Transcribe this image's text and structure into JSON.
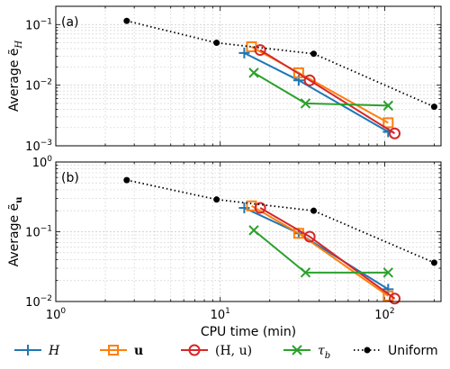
{
  "chart_data": [
    {
      "type": "line",
      "panel_label": "(a)",
      "ylabel": "Average ẽ",
      "ylabel_sub": "H",
      "xscale": "log",
      "yscale": "log",
      "xlim": [
        1,
        220
      ],
      "ylim": [
        0.001,
        0.2
      ],
      "yticks": [
        {
          "value": 0.001,
          "base": "10",
          "exp": "−3"
        },
        {
          "value": 0.01,
          "base": "10",
          "exp": "−2"
        },
        {
          "value": 0.1,
          "base": "10",
          "exp": "−1"
        }
      ],
      "grid": true,
      "series": [
        {
          "key": "H",
          "color": "#1f77b4",
          "marker": "plus",
          "style": "solid",
          "x": [
            14,
            30,
            105
          ],
          "y": [
            0.034,
            0.012,
            0.0017
          ]
        },
        {
          "key": "u",
          "color": "#ff7f0e",
          "marker": "square",
          "style": "solid",
          "x": [
            15.5,
            30,
            105
          ],
          "y": [
            0.043,
            0.016,
            0.0024
          ]
        },
        {
          "key": "Hu",
          "color": "#d62728",
          "marker": "circle",
          "style": "solid",
          "x": [
            17.5,
            35,
            115
          ],
          "y": [
            0.038,
            0.012,
            0.0016
          ]
        },
        {
          "key": "tau",
          "color": "#2ca02c",
          "marker": "x",
          "style": "solid",
          "x": [
            16,
            33,
            105
          ],
          "y": [
            0.016,
            0.005,
            0.0046
          ]
        },
        {
          "key": "uniform",
          "color": "#000000",
          "marker": "dot",
          "style": "dotted",
          "x": [
            2.7,
            9.5,
            37,
            200
          ],
          "y": [
            0.115,
            0.05,
            0.033,
            0.0044
          ]
        }
      ]
    },
    {
      "type": "line",
      "panel_label": "(b)",
      "ylabel": "Average ẽ",
      "ylabel_sub": "u",
      "xscale": "log",
      "yscale": "log",
      "xlim": [
        1,
        220
      ],
      "ylim": [
        0.01,
        1
      ],
      "yticks": [
        {
          "value": 0.01,
          "base": "10",
          "exp": "−2"
        },
        {
          "value": 0.1,
          "base": "10",
          "exp": "−1"
        },
        {
          "value": 1,
          "base": "10",
          "exp": "0"
        }
      ],
      "xticks": [
        {
          "value": 1,
          "base": "10",
          "exp": "0"
        },
        {
          "value": 10,
          "base": "10",
          "exp": "1"
        },
        {
          "value": 100,
          "base": "10",
          "exp": "2"
        }
      ],
      "xlabel": "CPU time (min)",
      "grid": true,
      "series": [
        {
          "key": "H",
          "color": "#1f77b4",
          "marker": "plus",
          "style": "solid",
          "x": [
            14,
            30,
            105
          ],
          "y": [
            0.22,
            0.095,
            0.015
          ]
        },
        {
          "key": "u",
          "color": "#ff7f0e",
          "marker": "square",
          "style": "solid",
          "x": [
            15.5,
            30,
            105
          ],
          "y": [
            0.235,
            0.095,
            0.012
          ]
        },
        {
          "key": "Hu",
          "color": "#d62728",
          "marker": "circle",
          "style": "solid",
          "x": [
            17.5,
            35,
            115
          ],
          "y": [
            0.22,
            0.085,
            0.011
          ]
        },
        {
          "key": "tau",
          "color": "#2ca02c",
          "marker": "x",
          "style": "solid",
          "x": [
            16,
            33,
            105
          ],
          "y": [
            0.105,
            0.026,
            0.026
          ]
        },
        {
          "key": "uniform",
          "color": "#000000",
          "marker": "dot",
          "style": "dotted",
          "x": [
            2.7,
            9.5,
            37,
            200
          ],
          "y": [
            0.55,
            0.29,
            0.2,
            0.036
          ]
        }
      ]
    }
  ],
  "legend": {
    "placement": "bottom",
    "entries": [
      {
        "key": "H",
        "label": "H",
        "color": "#1f77b4",
        "marker": "plus",
        "style": "solid"
      },
      {
        "key": "u",
        "label": "u",
        "color": "#ff7f0e",
        "marker": "square",
        "style": "solid"
      },
      {
        "key": "Hu",
        "label": "(H, u)",
        "color": "#d62728",
        "marker": "circle",
        "style": "solid"
      },
      {
        "key": "tau",
        "label": "τ",
        "sub": "b",
        "color": "#2ca02c",
        "marker": "x",
        "style": "solid"
      },
      {
        "key": "uniform",
        "label": "Uniform",
        "color": "#000000",
        "marker": "dot",
        "style": "dotted"
      }
    ]
  }
}
